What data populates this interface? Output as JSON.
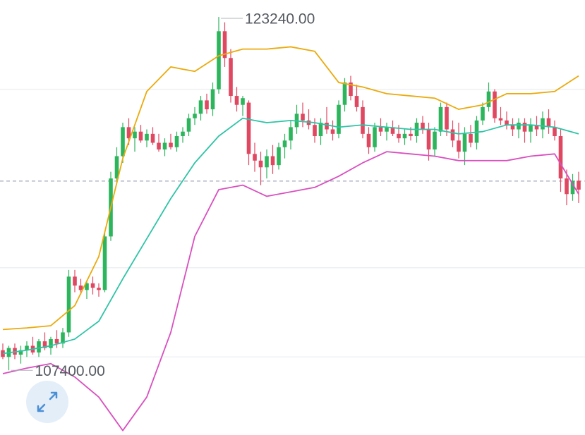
{
  "chart_data": {
    "type": "candlestick",
    "ylim": [
      104500,
      124000
    ],
    "grid_lines": [
      108000,
      112000,
      120000
    ],
    "last_price": 115880,
    "up_color": "#2db55d",
    "down_color": "#e04862",
    "candles": {
      "open": [
        108300,
        108000,
        108400,
        108100,
        108300,
        108500,
        108200,
        108700,
        108400,
        108800,
        108600,
        109100,
        111600,
        111200,
        111000,
        111300,
        111100,
        111000,
        113400,
        116000,
        117000,
        118300,
        117800,
        118100,
        117700,
        118000,
        117600,
        117300,
        117600,
        117400,
        117900,
        118100,
        118700,
        118900,
        119500,
        119100,
        120000,
        122600,
        121400,
        119700,
        119300,
        119400,
        117100,
        116800,
        116500,
        117000,
        116600,
        117400,
        117700,
        118300,
        118900,
        118600,
        118400,
        117900,
        118500,
        118200,
        118000,
        119300,
        120300,
        119700,
        119200,
        118000,
        117400,
        118300,
        118100,
        118300,
        118000,
        117800,
        118000,
        117900,
        118500,
        118200,
        117300,
        118100,
        119200,
        118200,
        117700,
        117200,
        118000,
        117600,
        118600,
        119200,
        119900,
        118700,
        118600,
        118400,
        118200,
        118500,
        118100,
        118400,
        118200,
        118700,
        118300,
        117900,
        116000,
        115300,
        115900
      ],
      "high": [
        108600,
        108500,
        108600,
        108500,
        108700,
        108900,
        108800,
        109100,
        108900,
        109200,
        109300,
        111900,
        111900,
        111500,
        111400,
        111600,
        111300,
        113600,
        116300,
        117400,
        118500,
        118700,
        118300,
        118400,
        118200,
        118300,
        118000,
        117800,
        118000,
        118100,
        118300,
        118900,
        119200,
        119700,
        119800,
        120300,
        123240,
        123000,
        121800,
        120100,
        119700,
        119500,
        117600,
        117200,
        117300,
        117500,
        117600,
        118000,
        118600,
        119300,
        119400,
        119100,
        118700,
        118700,
        119200,
        118600,
        119500,
        120500,
        120600,
        120200,
        119500,
        118300,
        118500,
        118700,
        118500,
        118600,
        118400,
        118200,
        118300,
        118700,
        118800,
        118500,
        118300,
        119400,
        119400,
        118600,
        118500,
        118300,
        118400,
        118800,
        119400,
        120300,
        120000,
        119200,
        119000,
        118700,
        118700,
        118700,
        118700,
        118800,
        119000,
        119100,
        118600,
        118200,
        116400,
        116200,
        116300
      ],
      "low": [
        107900,
        107400,
        107900,
        107700,
        108000,
        108100,
        108000,
        108300,
        108100,
        108400,
        108400,
        108900,
        110900,
        110800,
        110600,
        110800,
        110700,
        110900,
        113200,
        115800,
        116700,
        117500,
        117200,
        117600,
        117400,
        117500,
        117200,
        117000,
        117300,
        117200,
        117600,
        117900,
        118400,
        118600,
        118900,
        118800,
        119800,
        121000,
        119400,
        119000,
        118800,
        116600,
        116300,
        115700,
        116000,
        116200,
        116400,
        116900,
        117300,
        118000,
        118300,
        118200,
        117600,
        117500,
        118000,
        117700,
        117800,
        119000,
        119500,
        119000,
        117800,
        117100,
        117200,
        117900,
        117700,
        117900,
        117600,
        117500,
        117700,
        117600,
        118000,
        116800,
        117000,
        117900,
        117900,
        117400,
        116900,
        116600,
        117400,
        117300,
        118400,
        119000,
        118500,
        118400,
        118200,
        117900,
        117800,
        117600,
        117600,
        117900,
        117800,
        118000,
        117700,
        115400,
        114800,
        115000,
        114900
      ],
      "close": [
        108000,
        108400,
        108100,
        108300,
        108500,
        108200,
        108700,
        108400,
        108800,
        108600,
        109100,
        111600,
        111200,
        111000,
        111300,
        111100,
        111000,
        113400,
        116000,
        117000,
        118300,
        117800,
        118100,
        117700,
        118000,
        117600,
        117300,
        117600,
        117400,
        117900,
        118100,
        118700,
        118900,
        119500,
        119100,
        120000,
        122600,
        121400,
        119700,
        119300,
        119600,
        117100,
        116800,
        116500,
        117000,
        116600,
        117400,
        117700,
        118300,
        118900,
        118600,
        118400,
        117900,
        118500,
        118200,
        118000,
        119300,
        120300,
        119700,
        119200,
        118000,
        117400,
        118300,
        118100,
        118300,
        118000,
        117800,
        118000,
        117900,
        118500,
        118200,
        117300,
        118100,
        119200,
        118200,
        117700,
        117200,
        118000,
        117600,
        118600,
        119200,
        119900,
        118700,
        118600,
        118400,
        118200,
        118500,
        118100,
        118400,
        118200,
        118700,
        118300,
        117900,
        116000,
        115300,
        115900,
        115500
      ]
    },
    "bands": {
      "x": [
        0,
        4,
        8,
        12,
        16,
        20,
        24,
        28,
        32,
        36,
        40,
        44,
        48,
        52,
        56,
        60,
        64,
        68,
        72,
        76,
        80,
        84,
        88,
        92,
        96
      ],
      "series": [
        {
          "color": "#ebaa0c",
          "values": [
            109230,
            109300,
            109400,
            110300,
            112500,
            116900,
            119900,
            121000,
            120800,
            121500,
            121800,
            121800,
            121900,
            121700,
            120300,
            120100,
            119800,
            119700,
            119600,
            119100,
            119300,
            119800,
            119800,
            119900,
            120600
          ]
        },
        {
          "color": "#2ec4a6",
          "values": [
            108150,
            108300,
            108500,
            108800,
            109600,
            111500,
            113300,
            115100,
            116700,
            117900,
            118700,
            118500,
            118600,
            118500,
            118300,
            118400,
            118300,
            118200,
            118200,
            118000,
            118100,
            118400,
            118400,
            118300,
            118000
          ]
        },
        {
          "color": "#d94fbf",
          "values": [
            107250,
            107500,
            107700,
            107100,
            106200,
            104700,
            106200,
            109100,
            113400,
            115500,
            115700,
            115200,
            115400,
            115600,
            116100,
            116700,
            117200,
            117100,
            117000,
            116800,
            116800,
            116800,
            117000,
            117100,
            115300
          ]
        }
      ]
    },
    "max_label": {
      "value": 123240,
      "label": "123240.00"
    },
    "min_label": {
      "value": 107400,
      "label": "107400.00"
    }
  }
}
